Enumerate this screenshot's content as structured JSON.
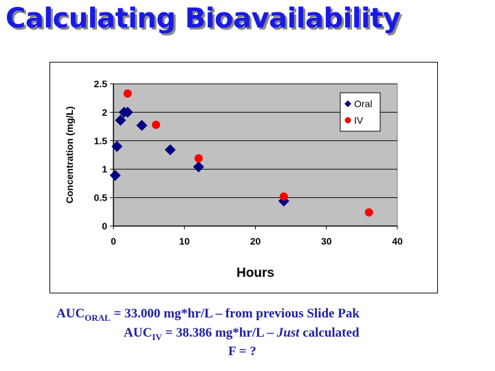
{
  "slide": {
    "title": "Calculating Bioavailability",
    "lines": [
      {
        "prefix": "AUC",
        "sub": "ORAL",
        "rest": " = 33.000 mg*hr/L – from previous Slide Pak"
      },
      {
        "prefix": "AUC",
        "sub": "IV",
        "rest_a": " = 38.386 mg*hr/L – ",
        "italic": "Just",
        "rest_b": " calculated"
      },
      {
        "text": "F = ?"
      }
    ]
  },
  "chart_data": {
    "type": "scatter",
    "xlabel": "Hours",
    "ylabel": "Concentration (mg/L)",
    "xlim": [
      0,
      40
    ],
    "ylim": [
      0,
      2.5
    ],
    "xticks": [
      "0",
      "10",
      "20",
      "30",
      "40"
    ],
    "yticks": [
      "0",
      "0.5",
      "1",
      "1.5",
      "2",
      "2.5"
    ],
    "grid": "horizontal",
    "plot_background": "#c0c0c0",
    "legend": "top-right",
    "series": [
      {
        "name": "Oral",
        "marker": "diamond",
        "color": "#000080",
        "x": [
          0.25,
          0.5,
          1,
          1.5,
          2,
          4,
          8,
          12,
          24
        ],
        "y": [
          0.89,
          1.4,
          1.86,
          2.0,
          2.0,
          1.77,
          1.34,
          1.04,
          0.44
        ]
      },
      {
        "name": "IV",
        "marker": "circle",
        "color": "#ff0000",
        "x": [
          2,
          6,
          12,
          24,
          36
        ],
        "y": [
          2.33,
          1.78,
          1.19,
          0.52,
          0.24
        ]
      }
    ]
  }
}
